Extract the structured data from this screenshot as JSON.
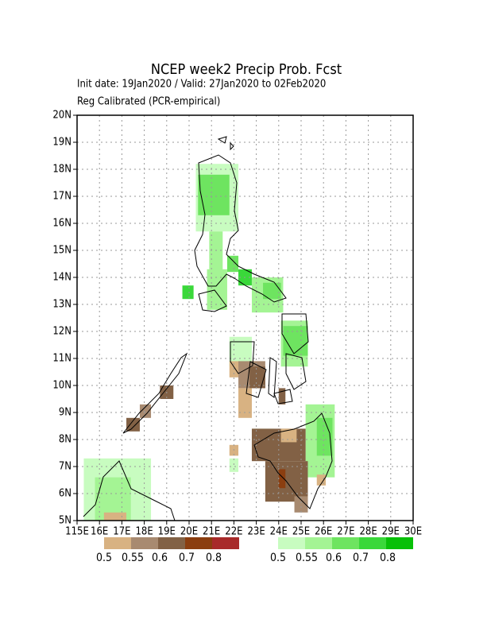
{
  "chart_data": {
    "type": "gridmap",
    "title": "NCEP week2 Precip Prob. Fcst",
    "subtitle": "Init date: 19Jan2020 / Valid: 27Jan2020 to 02Feb2020",
    "subtitle2": "Reg Calibrated (PCR-empirical)",
    "xlim": [
      115,
      130
    ],
    "ylim": [
      5,
      20
    ],
    "xticks": [
      {
        "value": 115,
        "label": "115E"
      },
      {
        "value": 116,
        "label": "16E"
      },
      {
        "value": 117,
        "label": "17E"
      },
      {
        "value": 118,
        "label": "18E"
      },
      {
        "value": 119,
        "label": "19E"
      },
      {
        "value": 120,
        "label": "20E"
      },
      {
        "value": 121,
        "label": "21E"
      },
      {
        "value": 122,
        "label": "22E"
      },
      {
        "value": 123,
        "label": "23E"
      },
      {
        "value": 124,
        "label": "24E"
      },
      {
        "value": 125,
        "label": "25E"
      },
      {
        "value": 126,
        "label": "26E"
      },
      {
        "value": 127,
        "label": "27E"
      },
      {
        "value": 128,
        "label": "28E"
      },
      {
        "value": 129,
        "label": "29E"
      },
      {
        "value": 130,
        "label": "30E"
      }
    ],
    "yticks": [
      {
        "value": 5,
        "label": "5N"
      },
      {
        "value": 6,
        "label": "6N"
      },
      {
        "value": 7,
        "label": "7N"
      },
      {
        "value": 8,
        "label": "8N"
      },
      {
        "value": 9,
        "label": "9N"
      },
      {
        "value": 10,
        "label": "10N"
      },
      {
        "value": 11,
        "label": "11N"
      },
      {
        "value": 12,
        "label": "12N"
      },
      {
        "value": 13,
        "label": "13N"
      },
      {
        "value": 14,
        "label": "14N"
      },
      {
        "value": 15,
        "label": "15N"
      },
      {
        "value": 16,
        "label": "16N"
      },
      {
        "value": 17,
        "label": "17N"
      },
      {
        "value": 18,
        "label": "18N"
      },
      {
        "value": 19,
        "label": "19N"
      },
      {
        "value": 20,
        "label": "20N"
      }
    ],
    "grid": true,
    "legend": {
      "dry": {
        "colors": [
          "#d8b282",
          "#a88a70",
          "#826145",
          "#8b3e10",
          "#a82a2a"
        ],
        "labels": [
          0.5,
          0.55,
          0.6,
          0.7,
          0.8
        ]
      },
      "wet": {
        "colors": [
          "#c8fcc0",
          "#a4f494",
          "#6ee460",
          "#3ad83a",
          "#08c008"
        ],
        "labels": [
          0.5,
          0.55,
          0.6,
          0.7,
          0.8
        ]
      }
    },
    "wet_cells": [
      [
        120.3,
        15.7,
        122.2,
        18.2,
        0.5
      ],
      [
        120.4,
        16.3,
        121.8,
        17.8,
        0.6
      ],
      [
        120.9,
        14,
        121.5,
        15.7,
        0.55
      ],
      [
        121.7,
        14.2,
        122.2,
        14.8,
        0.6
      ],
      [
        119.7,
        13.2,
        120.2,
        13.7,
        0.7
      ],
      [
        120.8,
        12.8,
        121.7,
        14.3,
        0.55
      ],
      [
        122.2,
        13.7,
        122.8,
        14.3,
        0.7
      ],
      [
        122.8,
        12.7,
        124.2,
        14.0,
        0.55
      ],
      [
        123.3,
        13.2,
        124.1,
        13.8,
        0.6
      ],
      [
        124.1,
        10.7,
        125.3,
        12.4,
        0.55
      ],
      [
        124.2,
        11.1,
        125.3,
        12.2,
        0.6
      ],
      [
        121.8,
        10.7,
        122.8,
        11.8,
        0.5
      ],
      [
        125.2,
        6.6,
        126.5,
        9.3,
        0.55
      ],
      [
        125.7,
        7.4,
        126.4,
        8.8,
        0.6
      ],
      [
        122.8,
        7.4,
        123.8,
        8.4,
        0.5
      ],
      [
        115.3,
        5,
        118.3,
        7.3,
        0.5
      ],
      [
        115.8,
        5,
        117.4,
        6.6,
        0.55
      ],
      [
        121.8,
        6.8,
        122.2,
        7.3,
        0.5
      ]
    ],
    "dry_cells": [
      [
        121.8,
        10.3,
        122.2,
        10.9,
        0.5
      ],
      [
        122.2,
        9.9,
        123.4,
        10.9,
        0.55
      ],
      [
        122.7,
        9.9,
        123.4,
        10.7,
        0.6
      ],
      [
        122.2,
        8.8,
        122.8,
        9.9,
        0.5
      ],
      [
        124.0,
        9.3,
        124.3,
        9.9,
        0.6
      ],
      [
        118.7,
        9.5,
        119.3,
        10.0,
        0.6
      ],
      [
        117.8,
        8.8,
        118.3,
        9.3,
        0.55
      ],
      [
        117.2,
        8.3,
        117.8,
        8.8,
        0.6
      ],
      [
        122.8,
        7.2,
        125.2,
        8.4,
        0.6
      ],
      [
        123.4,
        5.7,
        125.3,
        7.2,
        0.6
      ],
      [
        124.0,
        6.2,
        124.3,
        6.9,
        0.7
      ],
      [
        124.7,
        5.3,
        125.3,
        5.9,
        0.55
      ],
      [
        121.8,
        7.4,
        122.2,
        7.8,
        0.5
      ],
      [
        124.1,
        7.9,
        124.8,
        8.4,
        0.5
      ],
      [
        116.2,
        5,
        117.2,
        5.3,
        0.5
      ],
      [
        125.7,
        6.3,
        126.1,
        6.7,
        0.5
      ]
    ]
  }
}
